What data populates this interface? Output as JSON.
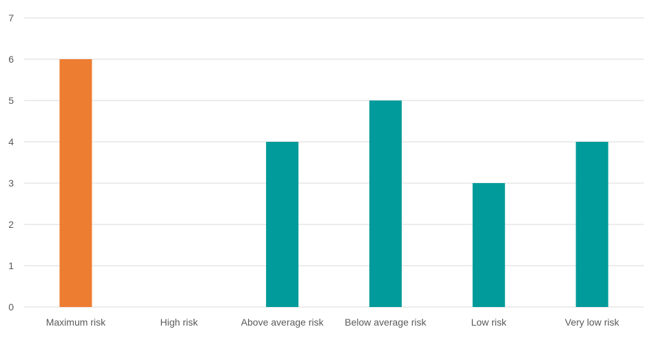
{
  "chart_data": {
    "type": "bar",
    "categories": [
      "Maximum risk",
      "High risk",
      "Above average risk",
      "Below average risk",
      "Low risk",
      "Very low risk"
    ],
    "values": [
      6,
      0,
      4,
      5,
      3,
      4
    ],
    "ylim": [
      0,
      7
    ],
    "yticks": [
      "0",
      "1",
      "2",
      "3",
      "4",
      "5",
      "6",
      "7"
    ],
    "grid": true,
    "colors": {
      "highlight": "#ED7D31",
      "default": "#009B9A",
      "grid": "#D9D9D9",
      "axis_text": "#595959"
    },
    "bar_colors": [
      "highlight",
      "default",
      "default",
      "default",
      "default",
      "default"
    ]
  }
}
